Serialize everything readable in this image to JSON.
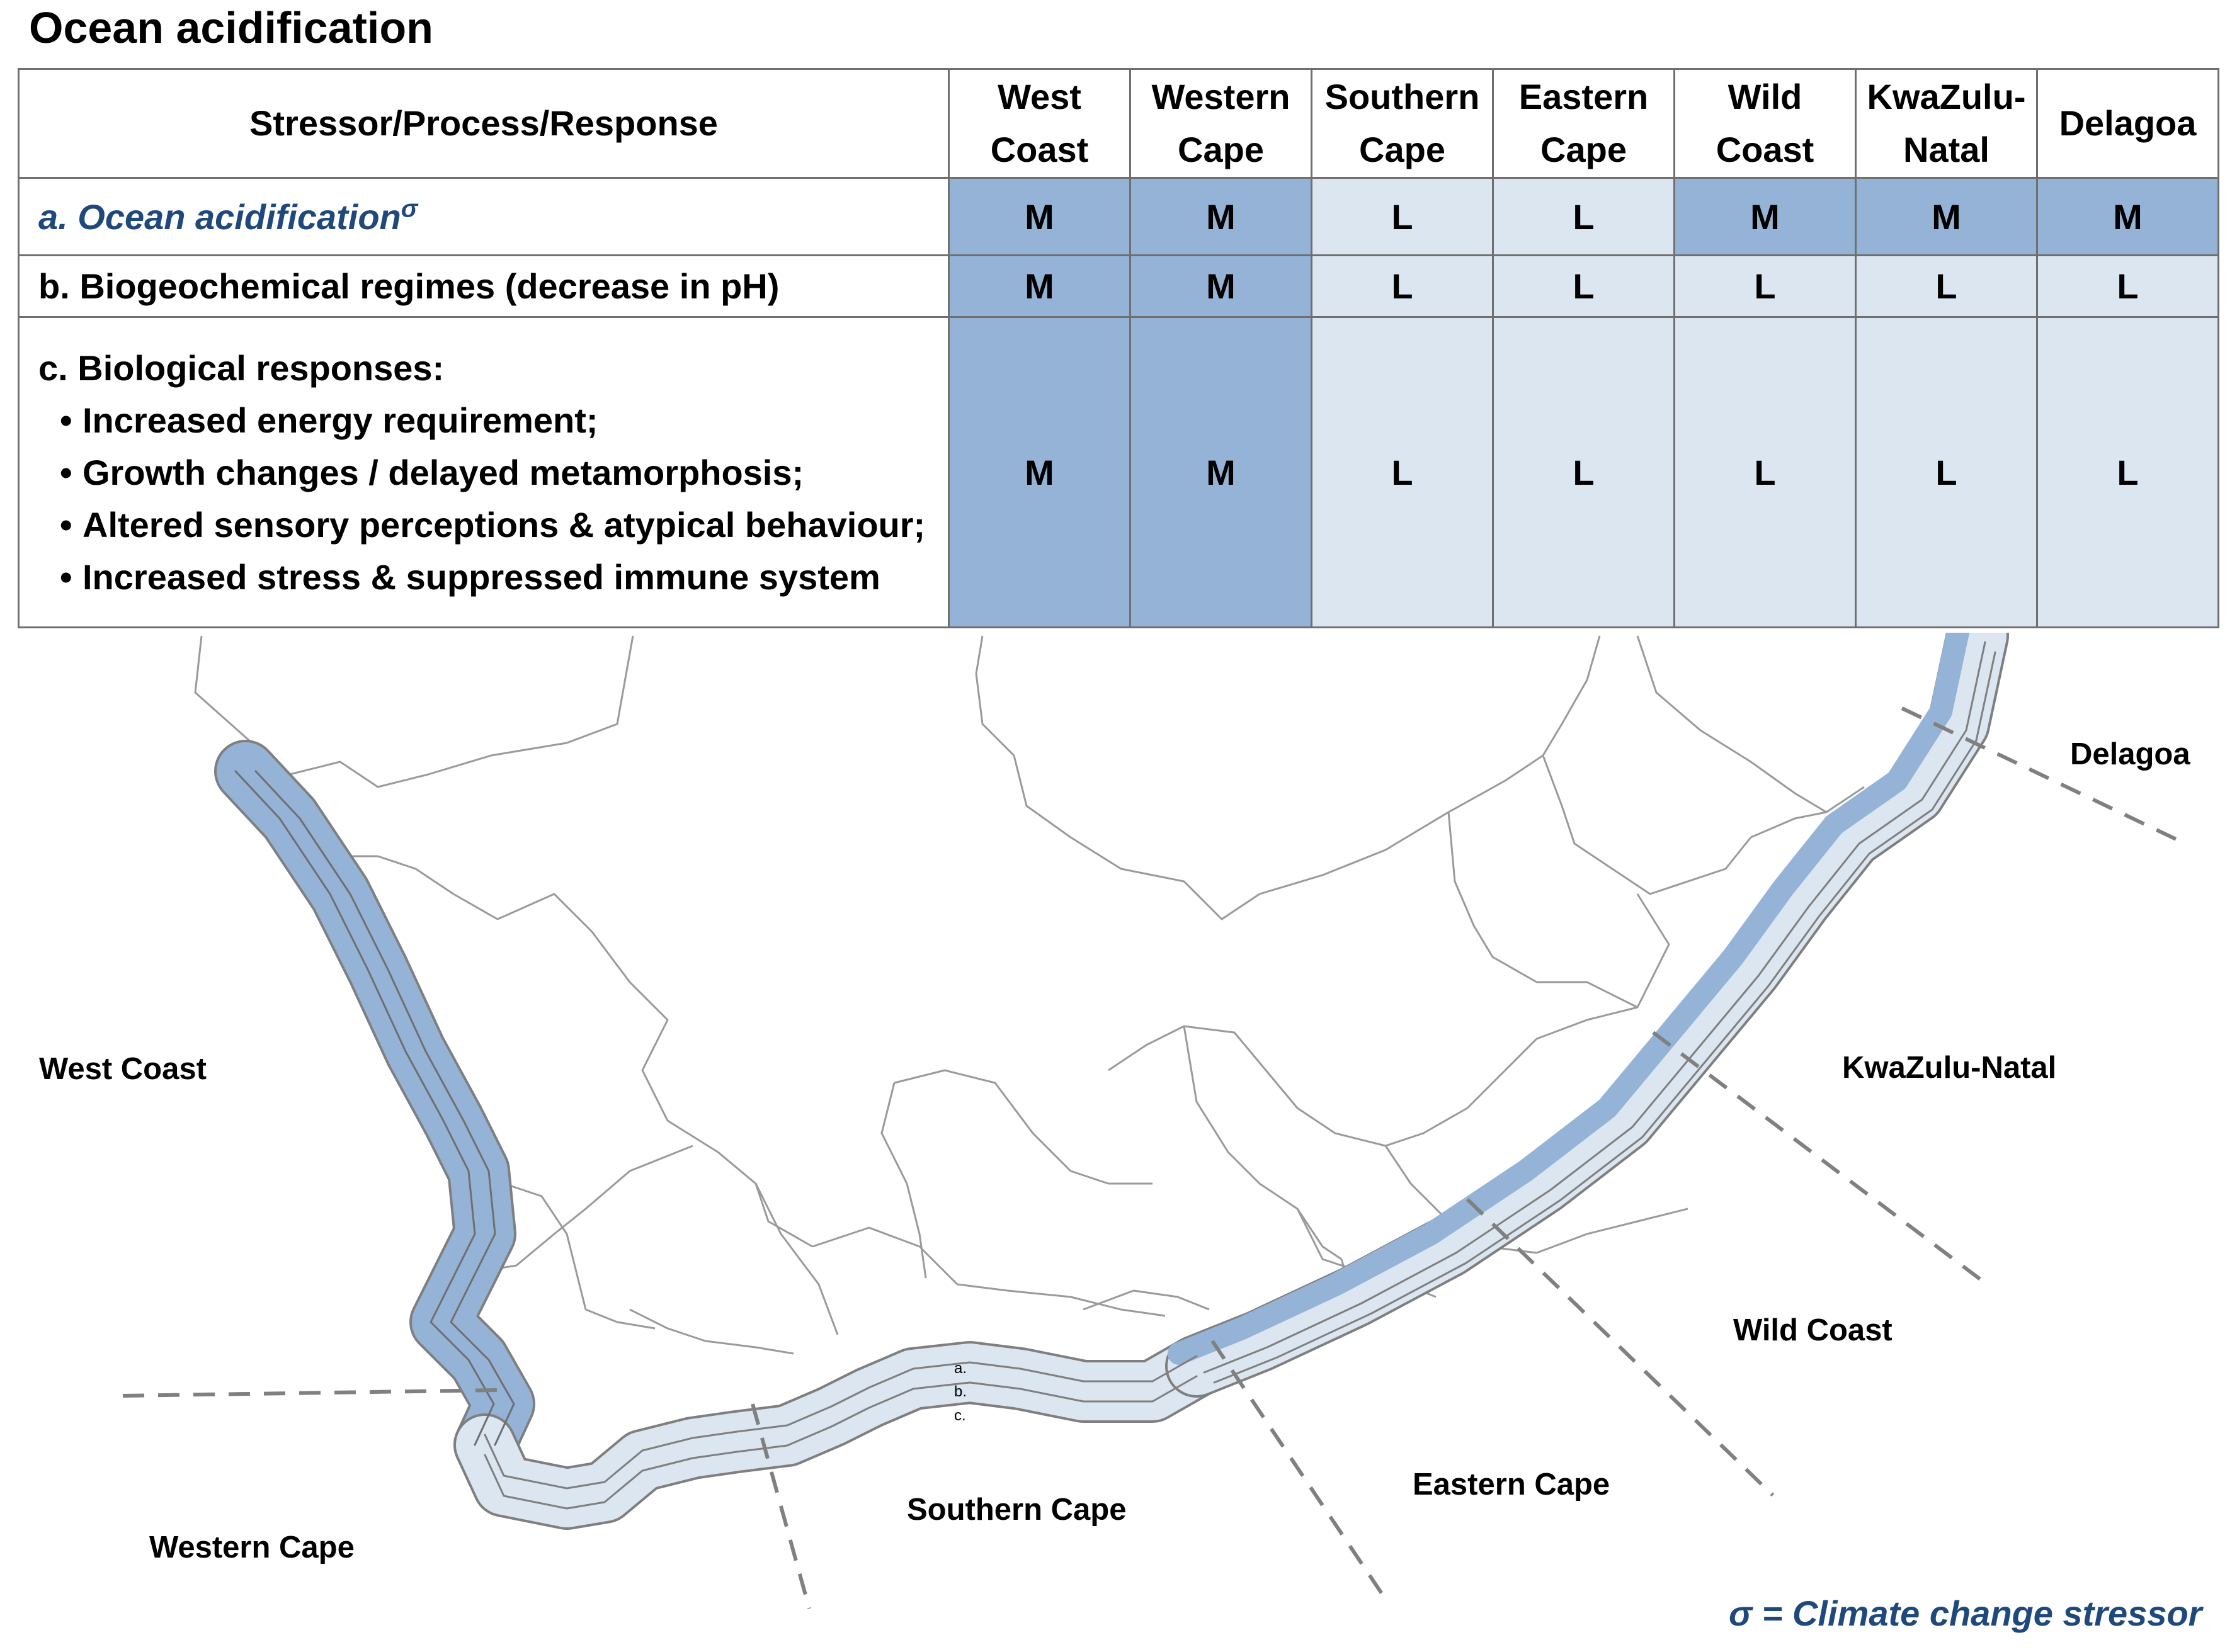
{
  "title": "Ocean acidification",
  "table": {
    "header": {
      "first": "Stressor/Process/Response",
      "regions": [
        {
          "line1": "West",
          "line2": "Coast"
        },
        {
          "line1": "Western",
          "line2": "Cape"
        },
        {
          "line1": "Southern",
          "line2": "Cape"
        },
        {
          "line1": "Eastern",
          "line2": "Cape"
        },
        {
          "line1": "Wild",
          "line2": "Coast"
        },
        {
          "line1": "KwaZulu-",
          "line2": "Natal"
        },
        {
          "line1": "Delagoa",
          "line2": ""
        }
      ]
    },
    "row_a": {
      "label": "a. Ocean acidification",
      "superscript": "σ",
      "values": [
        "M",
        "M",
        "L",
        "L",
        "M",
        "M",
        "M"
      ]
    },
    "row_b": {
      "label": "b. Biogeochemical regimes (decrease in pH)",
      "values": [
        "M",
        "M",
        "L",
        "L",
        "L",
        "L",
        "L"
      ]
    },
    "row_c": {
      "label": "c. Biological responses:",
      "bullets": [
        "Increased energy requirement;",
        "Growth changes / delayed metamorphosis;",
        "Altered sensory perceptions  & atypical behaviour;",
        "Increased stress & suppressed immune system"
      ],
      "values": [
        "M",
        "M",
        "L",
        "L",
        "L",
        "L",
        "L"
      ]
    },
    "colors": {
      "M": "#95b3d7",
      "L": "#dce6f1"
    }
  },
  "map": {
    "region_labels": {
      "west_coast": "West Coast",
      "western_cape": "Western Cape",
      "southern_cape": "Southern Cape",
      "eastern_cape": "Eastern Cape",
      "wild_coast": "Wild Coast",
      "kwazulu_natal": "KwaZulu-Natal",
      "delagoa": "Delagoa"
    },
    "band_labels": [
      "a.",
      "b.",
      "c."
    ],
    "colors": {
      "dark_band": "#95b3d7",
      "light_band": "#dce6f1",
      "outline": "#7f7f7f",
      "divider": "#808080"
    }
  },
  "footnote": "σ = Climate change stressor"
}
